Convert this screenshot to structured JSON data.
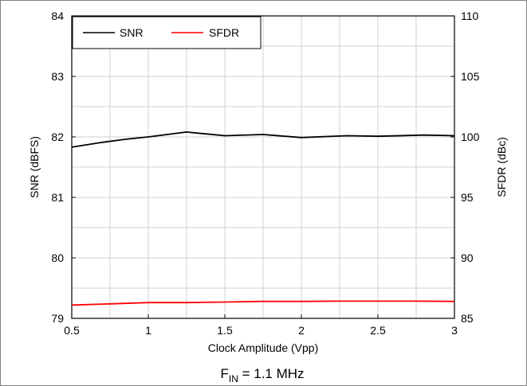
{
  "chart_data": {
    "type": "line",
    "xlabel": "Clock Amplitude (Vpp)",
    "ylabel": "SNR (dBFS)",
    "y2label": "SFDR (dBc)",
    "xlim": [
      0.5,
      3
    ],
    "ylim": [
      79,
      84
    ],
    "y2lim": [
      85,
      110
    ],
    "xticks": [
      "0.5",
      "1",
      "1.5",
      "2",
      "2.5",
      "3"
    ],
    "yticks": [
      "79",
      "80",
      "81",
      "82",
      "83",
      "84"
    ],
    "y2ticks": [
      "85",
      "90",
      "95",
      "100",
      "105",
      "110"
    ],
    "grid": true,
    "legend": "top-left",
    "series": [
      {
        "name": "SNR",
        "axis": "left",
        "color": "#000000",
        "x": [
          0.5,
          0.7,
          0.85,
          1.0,
          1.25,
          1.5,
          1.75,
          2.0,
          2.3,
          2.5,
          2.8,
          3.0
        ],
        "values": [
          81.83,
          81.91,
          81.96,
          82.0,
          82.08,
          82.02,
          82.04,
          81.99,
          82.02,
          82.01,
          82.03,
          82.02
        ]
      },
      {
        "name": "SFDR",
        "axis": "right",
        "color": "#ff0000",
        "x": [
          0.5,
          0.75,
          1.0,
          1.25,
          1.5,
          1.75,
          2.0,
          2.25,
          2.5,
          2.75,
          3.0
        ],
        "values": [
          86.1,
          86.2,
          86.3,
          86.3,
          86.35,
          86.4,
          86.4,
          86.42,
          86.42,
          86.42,
          86.4
        ]
      }
    ],
    "caption": {
      "main": "F",
      "sub": "IN",
      "rest": " = 1.1 MHz"
    }
  }
}
